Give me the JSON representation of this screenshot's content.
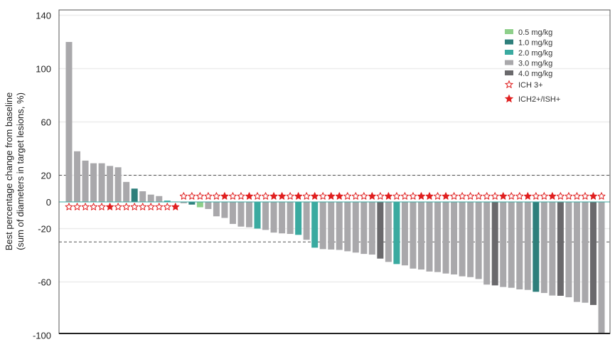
{
  "chart_data": {
    "type": "bar",
    "title": "",
    "xlabel": "",
    "ylabel_line1": "Best percentage change from baseline",
    "ylabel_line2": "(sum of diameters in target lesions, %)",
    "ylim": [
      -100,
      140
    ],
    "yticks": [
      140,
      100,
      60,
      20,
      0,
      -20,
      -60,
      -100
    ],
    "reference_lines": [
      20,
      -30
    ],
    "grid": true,
    "legend_position": "top-right",
    "dose_colors": {
      "0.5": "#8ecf8a",
      "1.0": "#2e7f7b",
      "2.0": "#3aaaa0",
      "3.0": "#a9a8ab",
      "4.0": "#6a696c"
    },
    "star_color": "#e02020",
    "legend": [
      {
        "key": "0.5",
        "label": "0.5 mg/kg"
      },
      {
        "key": "1.0",
        "label": "1.0 mg/kg"
      },
      {
        "key": "2.0",
        "label": "2.0 mg/kg"
      },
      {
        "key": "3.0",
        "label": "3.0 mg/kg"
      },
      {
        "key": "4.0",
        "label": "4.0 mg/kg"
      }
    ],
    "star_legend": [
      {
        "type": "hollow",
        "label": "ICH 3+"
      },
      {
        "type": "filled",
        "label": "ICH2+/ISH+"
      }
    ],
    "bars": [
      {
        "value": 120,
        "dose": "3.0",
        "ich2": false
      },
      {
        "value": 38,
        "dose": "3.0",
        "ich2": false
      },
      {
        "value": 31,
        "dose": "3.0",
        "ich2": false
      },
      {
        "value": 29,
        "dose": "3.0",
        "ich2": false
      },
      {
        "value": 29,
        "dose": "3.0",
        "ich2": false
      },
      {
        "value": 27,
        "dose": "3.0",
        "ich2": true
      },
      {
        "value": 26,
        "dose": "3.0",
        "ich2": false
      },
      {
        "value": 15,
        "dose": "3.0",
        "ich2": false
      },
      {
        "value": 10,
        "dose": "1.0",
        "ich2": false
      },
      {
        "value": 8,
        "dose": "3.0",
        "ich2": false
      },
      {
        "value": 5.5,
        "dose": "3.0",
        "ich2": false
      },
      {
        "value": 4.4,
        "dose": "3.0",
        "ich2": false
      },
      {
        "value": 1,
        "dose": "2.0",
        "ich2": false
      },
      {
        "value": 0.3,
        "dose": "3.0",
        "ich2": true
      },
      {
        "value": -1,
        "dose": "3.0",
        "ich2": false
      },
      {
        "value": -2,
        "dose": "1.0",
        "ich2": false
      },
      {
        "value": -4,
        "dose": "0.5",
        "ich2": false
      },
      {
        "value": -5.3,
        "dose": "3.0",
        "ich2": false
      },
      {
        "value": -10.8,
        "dose": "3.0",
        "ich2": false
      },
      {
        "value": -12,
        "dose": "3.0",
        "ich2": true
      },
      {
        "value": -16.5,
        "dose": "3.0",
        "ich2": false
      },
      {
        "value": -18.5,
        "dose": "3.0",
        "ich2": false
      },
      {
        "value": -19,
        "dose": "3.0",
        "ich2": true
      },
      {
        "value": -20,
        "dose": "2.0",
        "ich2": false
      },
      {
        "value": -21,
        "dose": "3.0",
        "ich2": false
      },
      {
        "value": -23,
        "dose": "3.0",
        "ich2": true
      },
      {
        "value": -23.6,
        "dose": "3.0",
        "ich2": true
      },
      {
        "value": -24,
        "dose": "3.0",
        "ich2": false
      },
      {
        "value": -24.7,
        "dose": "2.0",
        "ich2": true
      },
      {
        "value": -28.4,
        "dose": "3.0",
        "ich2": false
      },
      {
        "value": -34.3,
        "dose": "2.0",
        "ich2": true
      },
      {
        "value": -35.4,
        "dose": "3.0",
        "ich2": false
      },
      {
        "value": -35.7,
        "dose": "3.0",
        "ich2": true
      },
      {
        "value": -36,
        "dose": "3.0",
        "ich2": true
      },
      {
        "value": -37,
        "dose": "3.0",
        "ich2": false
      },
      {
        "value": -38,
        "dose": "3.0",
        "ich2": false
      },
      {
        "value": -39,
        "dose": "3.0",
        "ich2": false
      },
      {
        "value": -39.5,
        "dose": "3.0",
        "ich2": true
      },
      {
        "value": -42.5,
        "dose": "4.0",
        "ich2": false
      },
      {
        "value": -45,
        "dose": "3.0",
        "ich2": true
      },
      {
        "value": -46.6,
        "dose": "2.0",
        "ich2": false
      },
      {
        "value": -47.6,
        "dose": "3.0",
        "ich2": false
      },
      {
        "value": -50,
        "dose": "3.0",
        "ich2": false
      },
      {
        "value": -50.7,
        "dose": "3.0",
        "ich2": true
      },
      {
        "value": -52.2,
        "dose": "3.0",
        "ich2": true
      },
      {
        "value": -52.6,
        "dose": "3.0",
        "ich2": false
      },
      {
        "value": -53.7,
        "dose": "3.0",
        "ich2": true
      },
      {
        "value": -54.4,
        "dose": "3.0",
        "ich2": false
      },
      {
        "value": -55.8,
        "dose": "3.0",
        "ich2": false
      },
      {
        "value": -56.4,
        "dose": "3.0",
        "ich2": false
      },
      {
        "value": -57.8,
        "dose": "3.0",
        "ich2": false
      },
      {
        "value": -62,
        "dose": "3.0",
        "ich2": false
      },
      {
        "value": -62.6,
        "dose": "4.0",
        "ich2": false
      },
      {
        "value": -63.8,
        "dose": "3.0",
        "ich2": true
      },
      {
        "value": -64.4,
        "dose": "3.0",
        "ich2": false
      },
      {
        "value": -65.6,
        "dose": "3.0",
        "ich2": false
      },
      {
        "value": -66,
        "dose": "3.0",
        "ich2": true
      },
      {
        "value": -67.4,
        "dose": "1.0",
        "ich2": false
      },
      {
        "value": -68.3,
        "dose": "3.0",
        "ich2": false
      },
      {
        "value": -70.2,
        "dose": "3.0",
        "ich2": true
      },
      {
        "value": -70.4,
        "dose": "4.0",
        "ich2": false
      },
      {
        "value": -71.5,
        "dose": "3.0",
        "ich2": false
      },
      {
        "value": -75,
        "dose": "3.0",
        "ich2": false
      },
      {
        "value": -75.6,
        "dose": "3.0",
        "ich2": false
      },
      {
        "value": -77.3,
        "dose": "4.0",
        "ich2": true
      },
      {
        "value": -99,
        "dose": "3.0",
        "ich2": false
      }
    ]
  }
}
